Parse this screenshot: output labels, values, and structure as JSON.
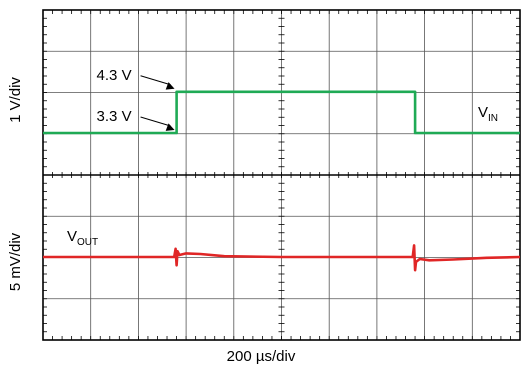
{
  "chart_data": {
    "type": "line",
    "xlabel": "200 µs/div",
    "x_divisions": 10,
    "grid": true,
    "panels": [
      {
        "ylabel": "1 V/div",
        "y_divisions": 4,
        "series": [
          {
            "name": "VIN",
            "name_main": "V",
            "name_sub": "IN",
            "color": "#1faa55",
            "x": [
              0,
              2.8,
              2.8,
              7.8,
              7.8,
              10
            ],
            "y": [
              3.3,
              3.3,
              4.3,
              4.3,
              3.3,
              3.3
            ]
          }
        ],
        "annotations": [
          {
            "text": "4.3 V",
            "x": 2.8,
            "y": 4.3
          },
          {
            "text": "3.3 V",
            "x": 2.8,
            "y": 3.3
          }
        ]
      },
      {
        "ylabel": "5 mV/div",
        "y_divisions": 4,
        "series": [
          {
            "name": "VOUT",
            "name_main": "V",
            "name_sub": "OUT",
            "color": "#e02626",
            "x": [
              0,
              2.75,
              2.78,
              2.8,
              2.82,
              2.86,
              3.0,
              3.3,
              3.8,
              5,
              7.75,
              7.78,
              7.8,
              7.82,
              7.9,
              8.1,
              8.6,
              9.3,
              10
            ],
            "y": [
              0,
              0,
              0.5,
              -0.5,
              0.35,
              0.12,
              0.22,
              0.18,
              0.05,
              0,
              0,
              0.7,
              -0.8,
              -0.3,
              -0.12,
              -0.2,
              -0.15,
              -0.05,
              0
            ]
          }
        ]
      }
    ]
  }
}
